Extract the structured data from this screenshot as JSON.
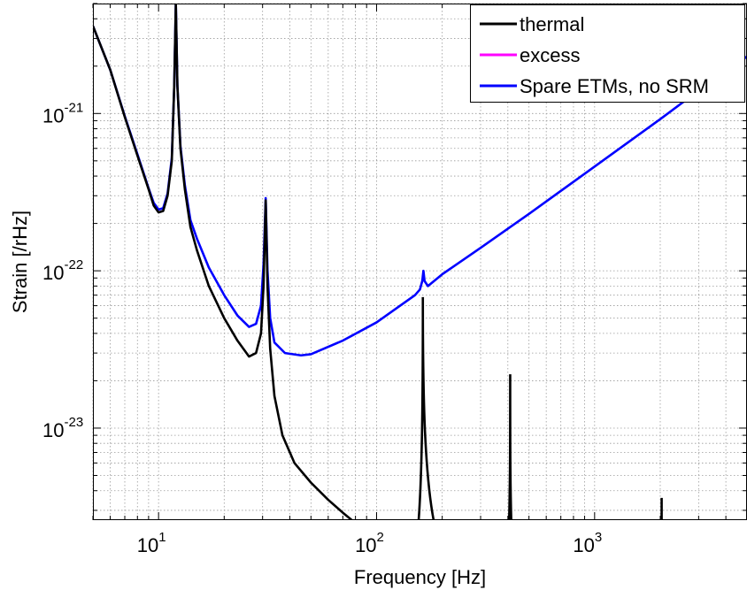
{
  "chart_data": {
    "type": "line",
    "title": "",
    "xlabel": "Frequency [Hz]",
    "ylabel": "Strain [/rHz]",
    "xscale": "log",
    "yscale": "log",
    "xlim": [
      5,
      5000
    ],
    "ylim": [
      2.6e-24,
      5e-21
    ],
    "grid": true,
    "legend_position": "top-right",
    "x_ticks": [
      {
        "base": "10",
        "exp": "1",
        "value": 10
      },
      {
        "base": "10",
        "exp": "2",
        "value": 100
      },
      {
        "base": "10",
        "exp": "3",
        "value": 1000
      }
    ],
    "y_ticks": [
      {
        "base": "10",
        "exp": "-21",
        "value": 1e-21
      },
      {
        "base": "10",
        "exp": "-22",
        "value": 1e-22
      },
      {
        "base": "10",
        "exp": "-23",
        "value": 1e-23
      }
    ],
    "series": [
      {
        "name": "thermal",
        "color": "#000000",
        "points": [
          [
            5,
            3.6e-21
          ],
          [
            6,
            1.9e-21
          ],
          [
            7,
            9.5e-22
          ],
          [
            8,
            5.4e-22
          ],
          [
            9,
            3.3e-22
          ],
          [
            9.5,
            2.6e-22
          ],
          [
            10,
            2.35e-22
          ],
          [
            10.5,
            2.4e-22
          ],
          [
            11,
            3e-22
          ],
          [
            11.5,
            5e-22
          ],
          [
            11.8,
            1.5e-21
          ],
          [
            12,
            5e-21
          ],
          [
            12.2,
            1.5e-21
          ],
          [
            12.6,
            6e-22
          ],
          [
            13.2,
            3.3e-22
          ],
          [
            14,
            1.9e-22
          ],
          [
            15,
            1.35e-22
          ],
          [
            17,
            8e-23
          ],
          [
            20,
            5e-23
          ],
          [
            23,
            3.6e-23
          ],
          [
            26,
            2.85e-23
          ],
          [
            28,
            3e-23
          ],
          [
            29.5,
            4e-23
          ],
          [
            30.3,
            8e-23
          ],
          [
            31,
            2.8e-22
          ],
          [
            31.6,
            8e-23
          ],
          [
            32.5,
            3.2e-23
          ],
          [
            34,
            1.6e-23
          ],
          [
            37,
            9e-24
          ],
          [
            42,
            6e-24
          ],
          [
            50,
            4.5e-24
          ],
          [
            60,
            3.5e-24
          ],
          [
            70,
            2.9e-24
          ],
          [
            77,
            2.6e-24
          ]
        ],
        "peaks": [
          {
            "x": 163,
            "y": 6.8e-23,
            "x_low": 152,
            "x_high": 195
          },
          {
            "x": 410,
            "y": 2.2e-23,
            "x_low": 402,
            "x_high": 418
          },
          {
            "x": 2030,
            "y": 3.6e-24,
            "x_low": 2010,
            "x_high": 2050
          }
        ]
      },
      {
        "name": "excess",
        "color": "#ff00ff",
        "points": []
      },
      {
        "name": "Spare ETMs, no SRM",
        "color": "#0000ff",
        "points": [
          [
            5,
            3.6e-21
          ],
          [
            6,
            1.9e-21
          ],
          [
            7,
            9.6e-22
          ],
          [
            8,
            5.5e-22
          ],
          [
            9,
            3.35e-22
          ],
          [
            9.5,
            2.7e-22
          ],
          [
            10,
            2.45e-22
          ],
          [
            10.5,
            2.5e-22
          ],
          [
            11,
            3.1e-22
          ],
          [
            11.5,
            5.2e-22
          ],
          [
            11.8,
            1.5e-21
          ],
          [
            12,
            5e-21
          ],
          [
            12.2,
            1.5e-21
          ],
          [
            12.6,
            6.2e-22
          ],
          [
            13.2,
            3.5e-22
          ],
          [
            14,
            2.1e-22
          ],
          [
            15,
            1.6e-22
          ],
          [
            17,
            1.05e-22
          ],
          [
            20,
            7e-23
          ],
          [
            23,
            5.2e-23
          ],
          [
            26,
            4.4e-23
          ],
          [
            28,
            4.6e-23
          ],
          [
            29.5,
            6e-23
          ],
          [
            30.3,
            1.1e-22
          ],
          [
            31,
            2.9e-22
          ],
          [
            31.6,
            1e-22
          ],
          [
            32.5,
            5e-23
          ],
          [
            34,
            3.5e-23
          ],
          [
            38,
            3e-23
          ],
          [
            45,
            2.9e-23
          ],
          [
            50,
            2.95e-23
          ],
          [
            70,
            3.6e-23
          ],
          [
            100,
            4.7e-23
          ],
          [
            150,
            7e-23
          ],
          [
            158,
            7.6e-23
          ],
          [
            162,
            8.6e-23
          ],
          [
            164,
            1e-22
          ],
          [
            166,
            8.6e-23
          ],
          [
            172,
            8e-23
          ],
          [
            200,
            9.5e-23
          ],
          [
            300,
            1.4e-22
          ],
          [
            500,
            2.3e-22
          ],
          [
            1000,
            4.6e-22
          ],
          [
            2000,
            9.2e-22
          ],
          [
            3000,
            1.4e-21
          ],
          [
            5000,
            2.3e-21
          ]
        ]
      }
    ]
  }
}
